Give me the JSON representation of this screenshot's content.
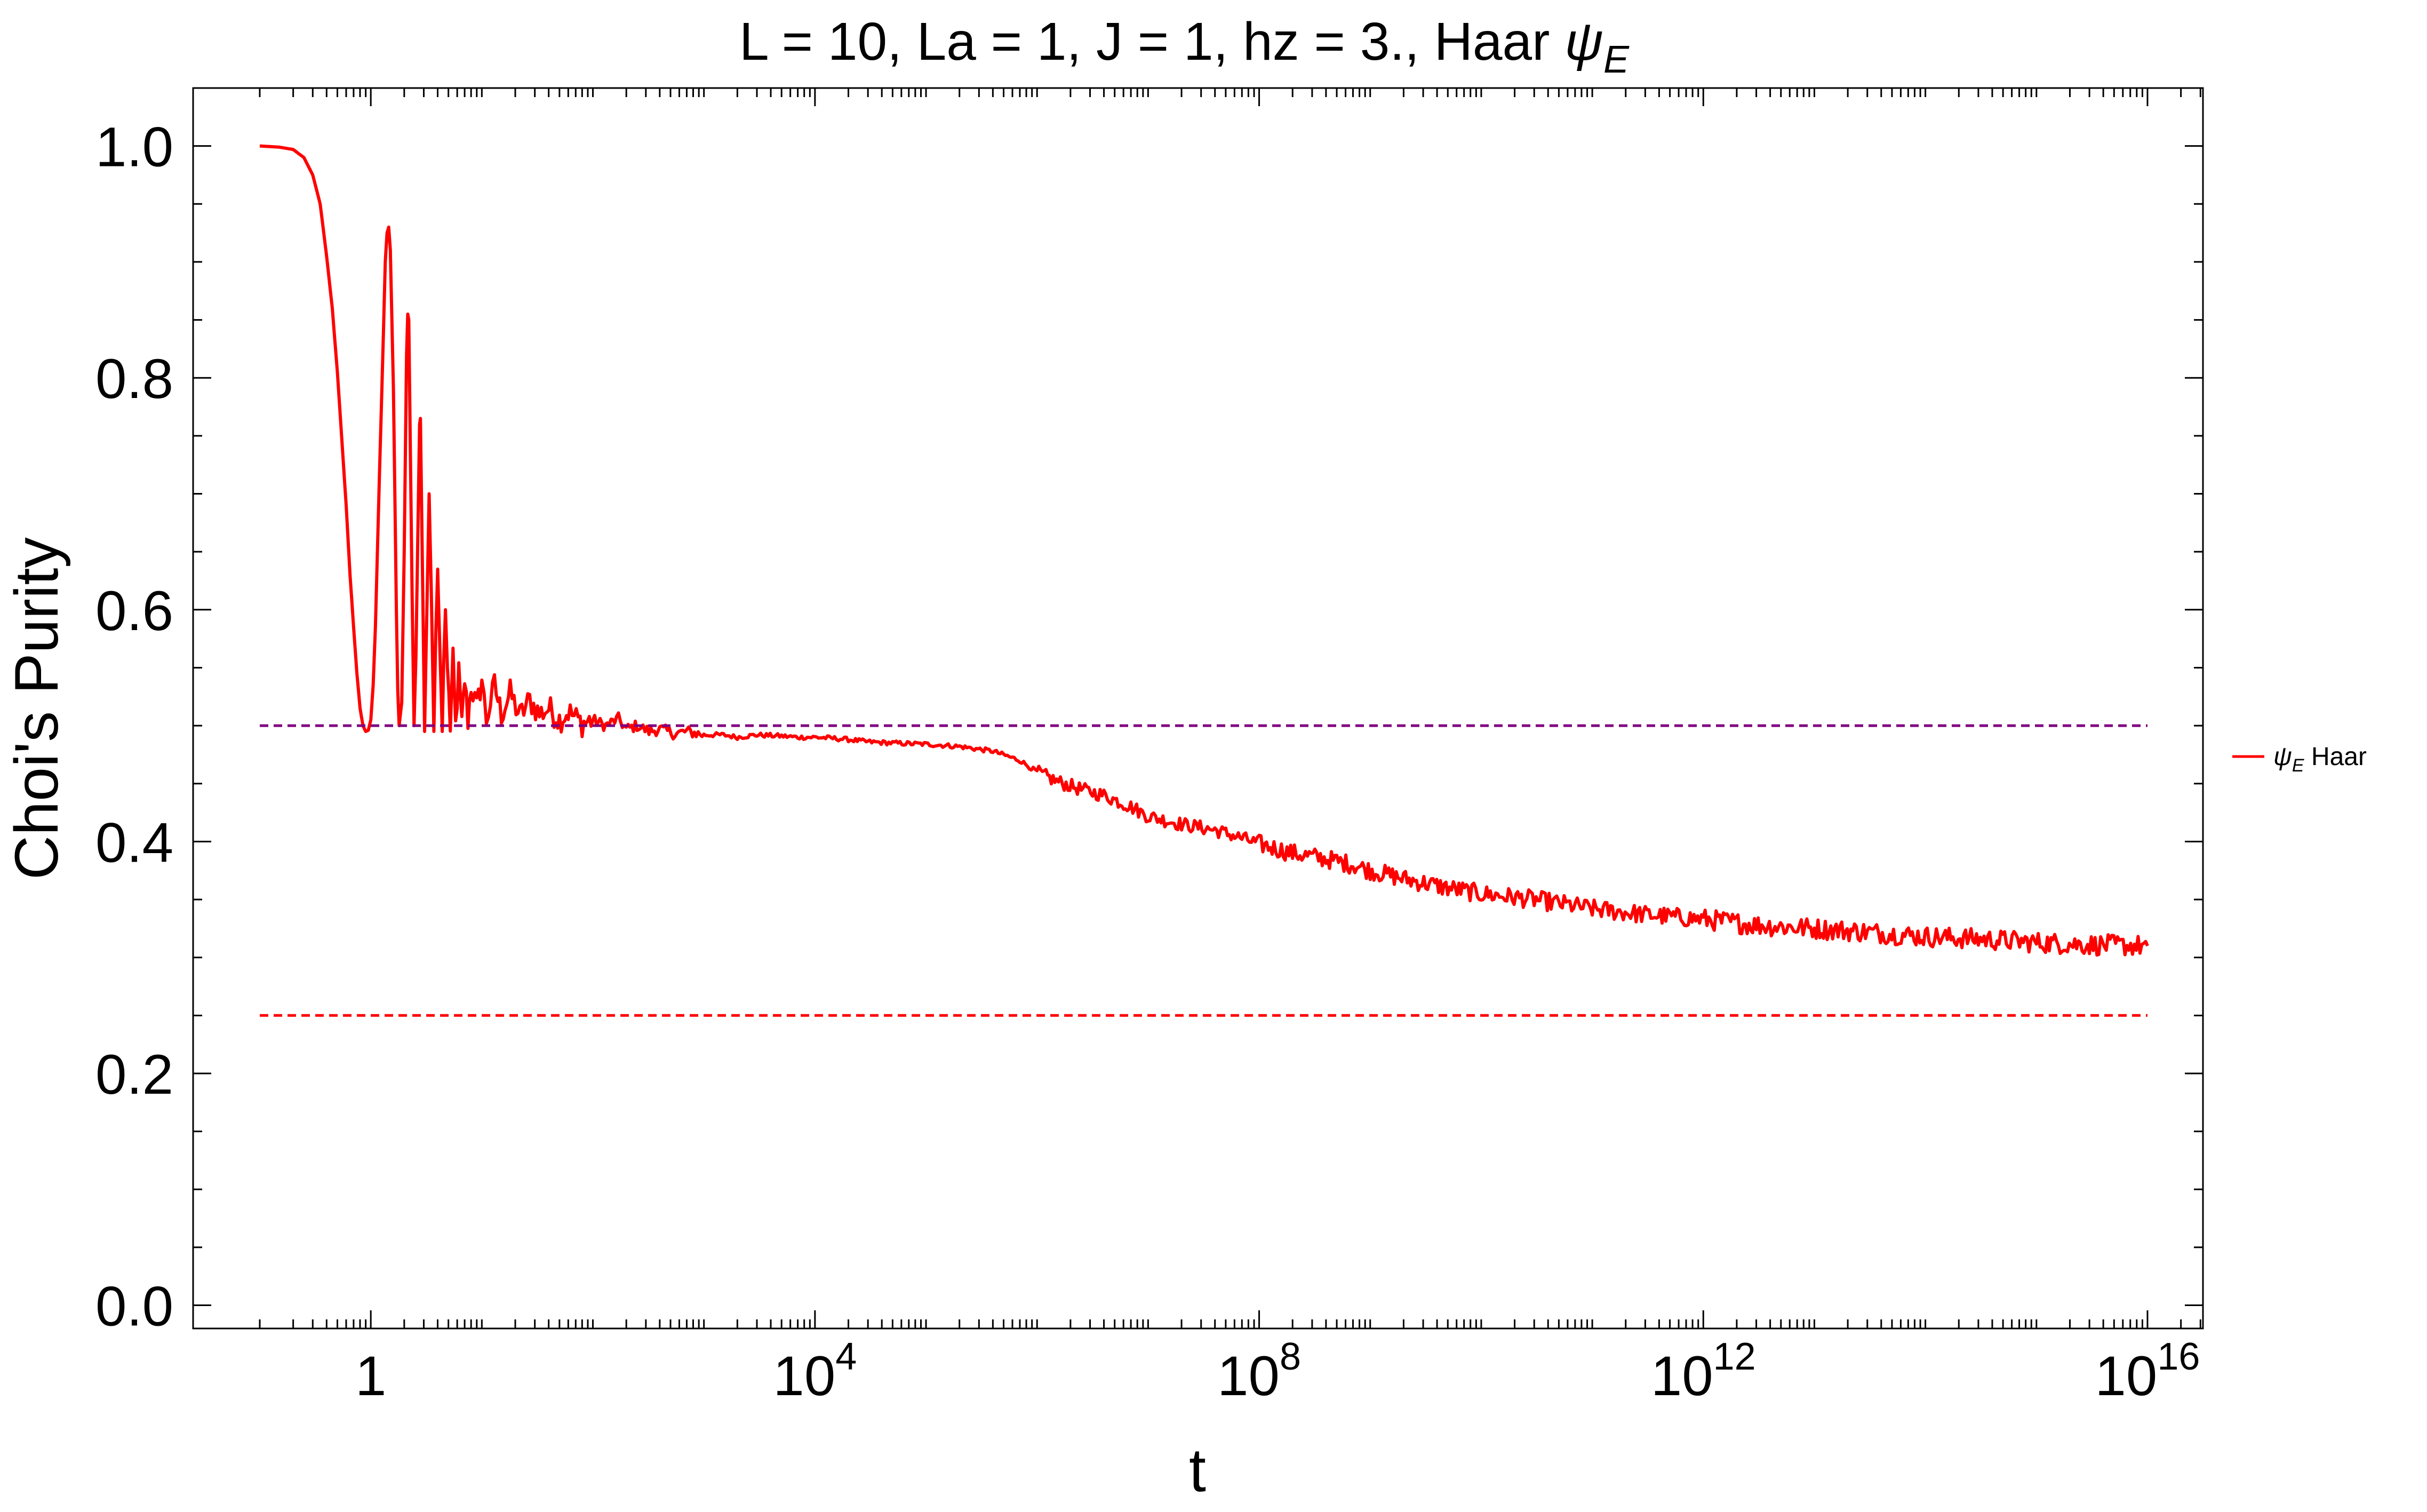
{
  "chart_data": {
    "type": "line",
    "title_main": "L = 10, La = 1, J = 1, hz = 3., Haar ",
    "title_psi": "ψ",
    "title_sub": "E",
    "xlabel": "t",
    "ylabel": "Choi's Purity",
    "x_scale": "log",
    "xlim": [
      0.0251,
      3.16e+16
    ],
    "ylim": [
      -0.02,
      1.05
    ],
    "x_ticks": [
      {
        "base": "1",
        "exp": ""
      },
      {
        "base": "10",
        "exp": "4"
      },
      {
        "base": "10",
        "exp": "8"
      },
      {
        "base": "10",
        "exp": "12"
      },
      {
        "base": "10",
        "exp": "16"
      }
    ],
    "y_ticks": [
      "0.0",
      "0.2",
      "0.4",
      "0.6",
      "0.8",
      "1.0"
    ],
    "grid": false,
    "legend_position": "right",
    "series": [
      {
        "name_psi": "ψ",
        "name_sub": "E",
        "name_rest": " Haar",
        "color": "#ff0000",
        "style": "solid",
        "points": [
          [
            0.1,
            1.0
          ],
          [
            0.15,
            0.999
          ],
          [
            0.2,
            0.997
          ],
          [
            0.25,
            0.99
          ],
          [
            0.3,
            0.975
          ],
          [
            0.35,
            0.95
          ],
          [
            0.4,
            0.905
          ],
          [
            0.45,
            0.86
          ],
          [
            0.5,
            0.805
          ],
          [
            0.55,
            0.745
          ],
          [
            0.6,
            0.69
          ],
          [
            0.65,
            0.63
          ],
          [
            0.7,
            0.585
          ],
          [
            0.75,
            0.545
          ],
          [
            0.8,
            0.515
          ],
          [
            0.85,
            0.5
          ],
          [
            0.9,
            0.495
          ],
          [
            0.95,
            0.496
          ],
          [
            1.0,
            0.505
          ],
          [
            1.05,
            0.535
          ],
          [
            1.1,
            0.585
          ],
          [
            1.2,
            0.72
          ],
          [
            1.3,
            0.84
          ],
          [
            1.35,
            0.9
          ],
          [
            1.4,
            0.925
          ],
          [
            1.45,
            0.93
          ],
          [
            1.5,
            0.91
          ],
          [
            1.6,
            0.79
          ],
          [
            1.7,
            0.6
          ],
          [
            1.75,
            0.53
          ],
          [
            1.8,
            0.5
          ],
          [
            1.9,
            0.52
          ],
          [
            2.0,
            0.65
          ],
          [
            2.1,
            0.82
          ],
          [
            2.15,
            0.855
          ],
          [
            2.2,
            0.85
          ],
          [
            2.35,
            0.62
          ],
          [
            2.45,
            0.5
          ],
          [
            2.55,
            0.56
          ],
          [
            2.75,
            0.76
          ],
          [
            2.8,
            0.765
          ],
          [
            2.95,
            0.6
          ],
          [
            3.05,
            0.495
          ],
          [
            3.2,
            0.6
          ],
          [
            3.35,
            0.7
          ],
          [
            3.5,
            0.62
          ],
          [
            3.7,
            0.495
          ],
          [
            3.85,
            0.58
          ],
          [
            4.0,
            0.635
          ],
          [
            4.15,
            0.58
          ],
          [
            4.4,
            0.495
          ],
          [
            4.55,
            0.56
          ],
          [
            4.7,
            0.6
          ],
          [
            4.9,
            0.55
          ],
          [
            5.2,
            0.5
          ],
          [
            5.5,
            0.555
          ],
          [
            5.8,
            0.5
          ],
          [
            6.2,
            0.545
          ],
          [
            6.6,
            0.5
          ],
          [
            7.0,
            0.54
          ],
          [
            7.5,
            0.505
          ],
          [
            8.0,
            0.535
          ],
          [
            9.0,
            0.515
          ],
          [
            10.0,
            0.54
          ],
          [
            11.0,
            0.505
          ],
          [
            13.0,
            0.535
          ],
          [
            15.0,
            0.51
          ],
          [
            18.0,
            0.528
          ],
          [
            22.0,
            0.508
          ],
          [
            27.0,
            0.522
          ],
          [
            33.0,
            0.51
          ],
          [
            40.0,
            0.515
          ],
          [
            50.0,
            0.505
          ],
          [
            60.0,
            0.512
          ],
          [
            80.0,
            0.502
          ],
          [
            100.0,
            0.505
          ],
          [
            130.0,
            0.5
          ],
          [
            170.0,
            0.506
          ],
          [
            200.0,
            0.497
          ],
          [
            250.0,
            0.5
          ],
          [
            320.0,
            0.495
          ],
          [
            400.0,
            0.497
          ],
          [
            550.0,
            0.493
          ],
          [
            700.0,
            0.495
          ],
          [
            1000.0,
            0.492
          ],
          [
            1500.0,
            0.492
          ],
          [
            2000.0,
            0.49
          ],
          [
            3000.0,
            0.492
          ],
          [
            5000.0,
            0.491
          ],
          [
            7000.0,
            0.49
          ],
          [
            10000.0,
            0.49
          ],
          [
            15000.0,
            0.489
          ],
          [
            20000.0,
            0.488
          ],
          [
            30000.0,
            0.486
          ],
          [
            50000.0,
            0.485
          ],
          [
            100000.0,
            0.484
          ],
          [
            200000.0,
            0.482
          ],
          [
            400000.0,
            0.478
          ],
          [
            700000.0,
            0.47
          ],
          [
            1000000.0,
            0.46
          ],
          [
            1500000.0,
            0.452
          ],
          [
            2500000.0,
            0.445
          ],
          [
            4000000.0,
            0.44
          ],
          [
            7000000.0,
            0.43
          ],
          [
            10000000.0,
            0.422
          ],
          [
            20000000.0,
            0.415
          ],
          [
            40000000.0,
            0.41
          ],
          [
            70000000.0,
            0.403
          ],
          [
            100000000.0,
            0.398
          ],
          [
            200000000.0,
            0.39
          ],
          [
            400000000.0,
            0.385
          ],
          [
            700000000.0,
            0.38
          ],
          [
            1000000000.0,
            0.375
          ],
          [
            2000000000.0,
            0.368
          ],
          [
            5000000000.0,
            0.36
          ],
          [
            10000000000.0,
            0.355
          ],
          [
            30000000000.0,
            0.35
          ],
          [
            100000000000.0,
            0.342
          ],
          [
            300000000000.0,
            0.337
          ],
          [
            1000000000000.0,
            0.333
          ],
          [
            3000000000000.0,
            0.328
          ],
          [
            10000000000000.0,
            0.325
          ],
          [
            30000000000000.0,
            0.322
          ],
          [
            100000000000000.0,
            0.318
          ],
          [
            300000000000000.0,
            0.316
          ],
          [
            1000000000000000.0,
            0.313
          ],
          [
            3000000000000000.0,
            0.311
          ],
          [
            1e+16,
            0.31
          ]
        ]
      },
      {
        "color": "#800080",
        "style": "dashed",
        "points": [
          [
            0.1,
            0.5
          ],
          [
            1e+16,
            0.5
          ]
        ]
      },
      {
        "color": "#ff0000",
        "style": "dashed",
        "points": [
          [
            0.1,
            0.25
          ],
          [
            1e+16,
            0.25
          ]
        ]
      }
    ]
  }
}
